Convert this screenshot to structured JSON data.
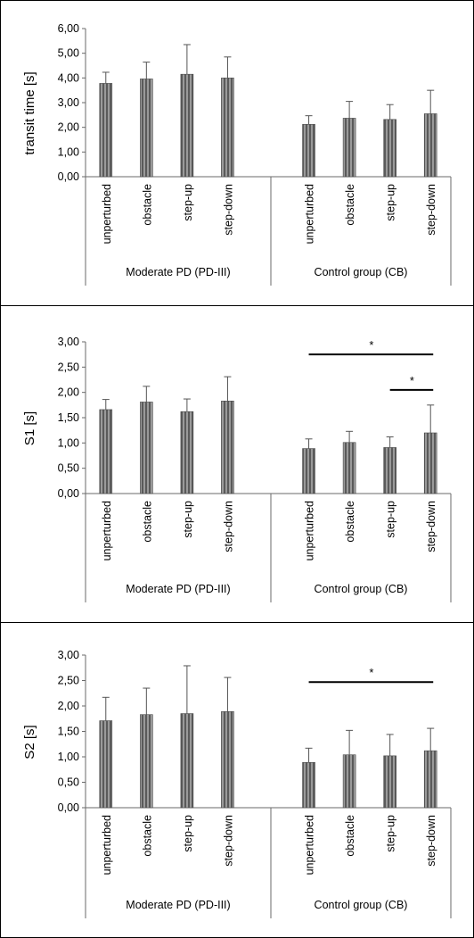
{
  "chart_data": [
    {
      "type": "bar",
      "ylabel": "transit time [s]",
      "ylim": [
        0,
        6
      ],
      "ytick_step": 1,
      "ytick_labels": [
        "0,00",
        "1,00",
        "2,00",
        "3,00",
        "4,00",
        "5,00",
        "6,00"
      ],
      "groups": [
        {
          "name": "Moderate PD (PD-III)",
          "categories": [
            "unperturbed",
            "obstacle",
            "step-up",
            "step-down"
          ],
          "values": [
            3.78,
            3.96,
            4.15,
            4.0
          ],
          "errors": [
            0.45,
            0.68,
            1.2,
            0.85
          ]
        },
        {
          "name": "Control group (CB)",
          "categories": [
            "unperturbed",
            "obstacle",
            "step-up",
            "step-down"
          ],
          "values": [
            2.12,
            2.37,
            2.32,
            2.55
          ],
          "errors": [
            0.35,
            0.68,
            0.6,
            0.95
          ]
        }
      ],
      "significance": []
    },
    {
      "type": "bar",
      "ylabel": "S1 [s]",
      "ylim": [
        0,
        3
      ],
      "ytick_step": 0.5,
      "ytick_labels": [
        "0,00",
        "0,50",
        "1,00",
        "1,50",
        "2,00",
        "2,50",
        "3,00"
      ],
      "groups": [
        {
          "name": "Moderate PD (PD-III)",
          "categories": [
            "unperturbed",
            "obstacle",
            "step-up",
            "step-down"
          ],
          "values": [
            1.66,
            1.81,
            1.62,
            1.83
          ],
          "errors": [
            0.2,
            0.31,
            0.25,
            0.48
          ]
        },
        {
          "name": "Control group (CB)",
          "categories": [
            "unperturbed",
            "obstacle",
            "step-up",
            "step-down"
          ],
          "values": [
            0.89,
            1.01,
            0.91,
            1.2
          ],
          "errors": [
            0.19,
            0.22,
            0.21,
            0.55
          ]
        }
      ],
      "significance": [
        {
          "group": 1,
          "from": 0,
          "to": 3,
          "y": 2.75,
          "label": "*"
        },
        {
          "group": 1,
          "from": 2,
          "to": 3,
          "y": 2.05,
          "label": "*"
        }
      ]
    },
    {
      "type": "bar",
      "ylabel": "S2 [s]",
      "ylim": [
        0,
        3
      ],
      "ytick_step": 0.5,
      "ytick_labels": [
        "0,00",
        "0,50",
        "1,00",
        "1,50",
        "2,00",
        "2,50",
        "3,00"
      ],
      "groups": [
        {
          "name": "Moderate PD (PD-III)",
          "categories": [
            "unperturbed",
            "obstacle",
            "step-up",
            "step-down"
          ],
          "values": [
            1.71,
            1.83,
            1.85,
            1.89
          ],
          "errors": [
            0.46,
            0.52,
            0.94,
            0.67
          ]
        },
        {
          "name": "Control group (CB)",
          "categories": [
            "unperturbed",
            "obstacle",
            "step-up",
            "step-down"
          ],
          "values": [
            0.89,
            1.04,
            1.02,
            1.12
          ],
          "errors": [
            0.28,
            0.48,
            0.42,
            0.44
          ]
        }
      ],
      "significance": [
        {
          "group": 1,
          "from": 0,
          "to": 3,
          "y": 2.47,
          "label": "*"
        }
      ]
    }
  ]
}
